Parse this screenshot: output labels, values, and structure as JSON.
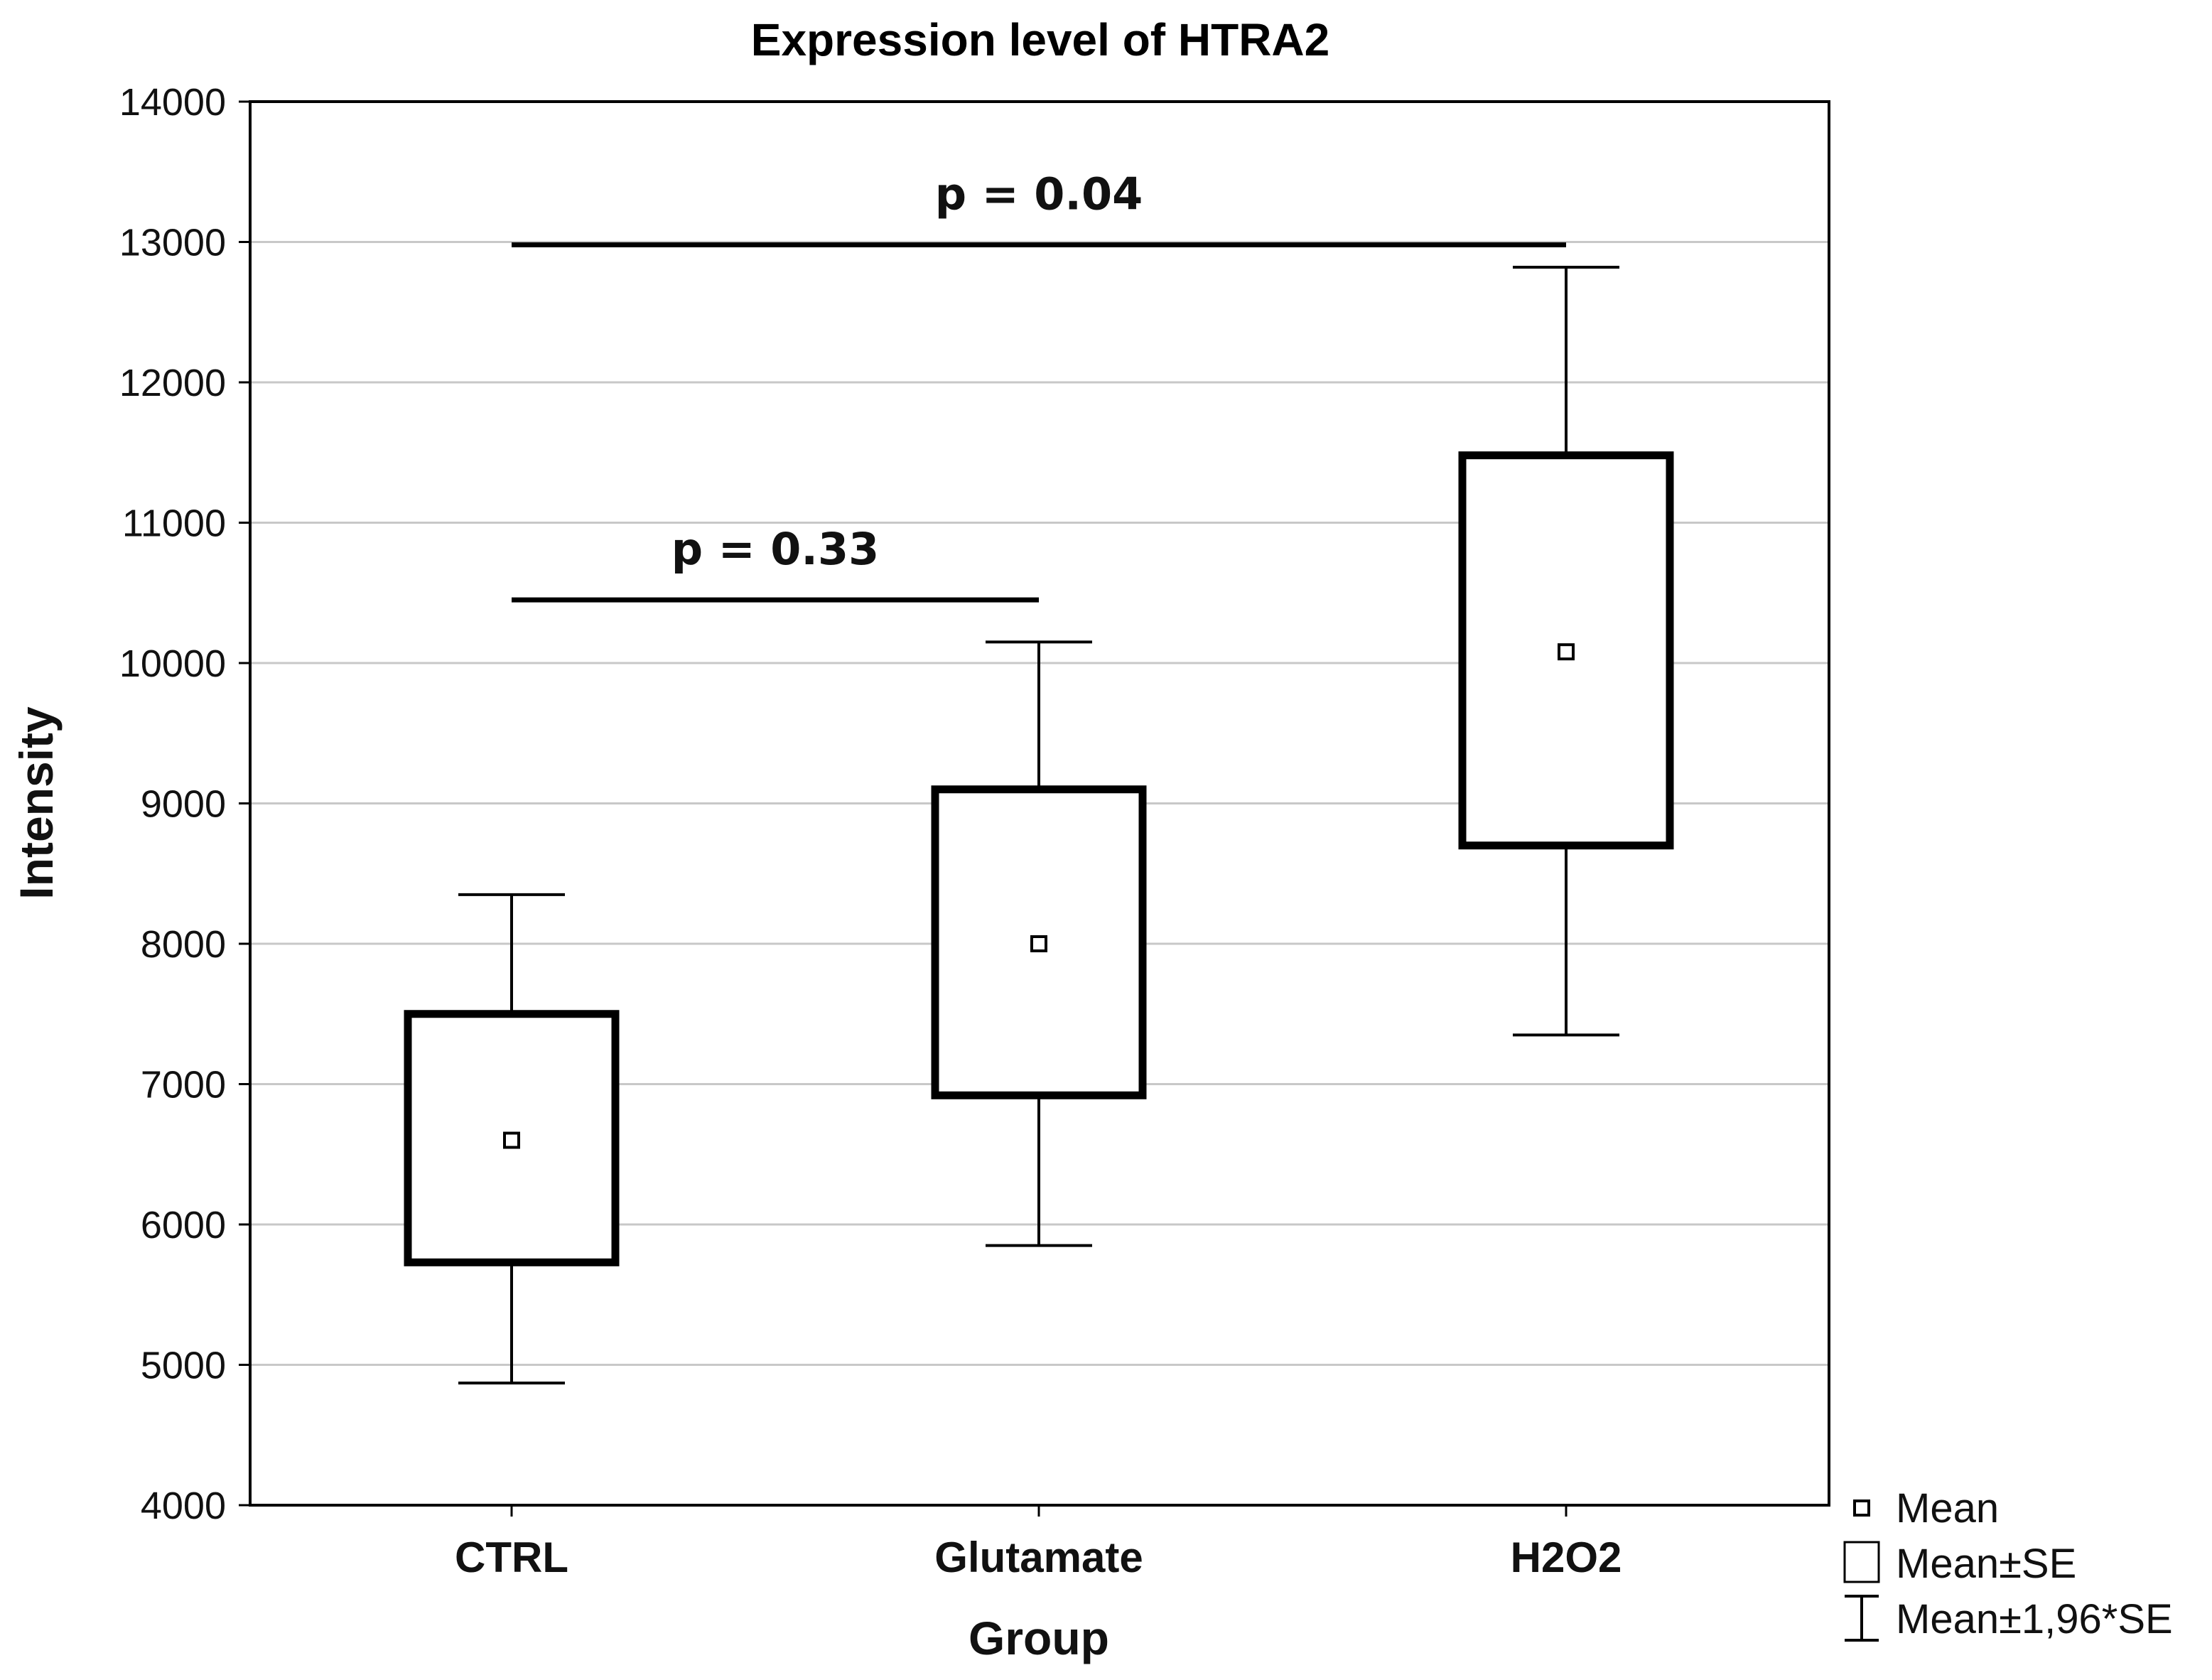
{
  "chart_data": {
    "type": "box",
    "title": "Expression level of HTRA2",
    "xlabel": "Group",
    "ylabel": "Intensity",
    "ylim": [
      4000,
      14000
    ],
    "yticks": [
      4000,
      5000,
      6000,
      7000,
      8000,
      9000,
      10000,
      11000,
      12000,
      13000,
      14000
    ],
    "grid": true,
    "categories": [
      "CTRL",
      "Glutamate",
      "H2O2"
    ],
    "groups": [
      {
        "name": "CTRL",
        "mean": 6600,
        "se_low": 5730,
        "se_high": 7500,
        "ci_low": 4870,
        "ci_high": 8350
      },
      {
        "name": "Glutamate",
        "mean": 8000,
        "se_low": 6920,
        "se_high": 9100,
        "ci_low": 5850,
        "ci_high": 10150
      },
      {
        "name": "H2O2",
        "mean": 10080,
        "se_low": 8700,
        "se_high": 11480,
        "ci_low": 7350,
        "ci_high": 12820
      }
    ],
    "annotations": [
      {
        "label": "p = 0.33",
        "from": "CTRL",
        "to": "Glutamate",
        "y": 10450
      },
      {
        "label": "p = 0.04",
        "from": "CTRL",
        "to": "H2O2",
        "y": 12980
      }
    ],
    "legend": {
      "placement": "bottom-right outside",
      "items": [
        {
          "symbol": "mean-square",
          "label": "Mean"
        },
        {
          "symbol": "box",
          "label": "Mean±SE"
        },
        {
          "symbol": "whisker",
          "label": "Mean±1,96*SE"
        }
      ]
    },
    "colors": {
      "line": "#000000",
      "grid": "#c8c8c8",
      "background": "#ffffff"
    }
  }
}
